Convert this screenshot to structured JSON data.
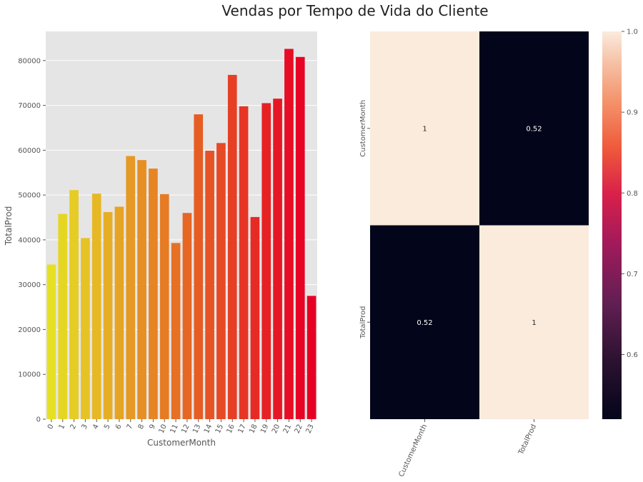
{
  "title": "Vendas por Tempo de Vida do Cliente",
  "chart_data": [
    {
      "type": "bar",
      "xlabel": "CustomerMonth",
      "ylabel": "TotalProd",
      "categories": [
        "0",
        "1",
        "2",
        "3",
        "4",
        "5",
        "6",
        "7",
        "8",
        "9",
        "10",
        "11",
        "12",
        "13",
        "14",
        "15",
        "16",
        "17",
        "18",
        "19",
        "20",
        "21",
        "22",
        "23"
      ],
      "values": [
        34500,
        45800,
        51100,
        40400,
        50300,
        46200,
        47400,
        58700,
        57800,
        55900,
        50200,
        39300,
        46000,
        68000,
        59900,
        61600,
        76800,
        69800,
        45100,
        70500,
        71500,
        82600,
        80800,
        27500
      ],
      "ylim": [
        0,
        86500
      ],
      "yticks": [
        0,
        10000,
        20000,
        30000,
        40000,
        50000,
        60000,
        70000,
        80000
      ],
      "grid": true,
      "colors": [
        "#e6e024",
        "#e6d624",
        "#e6cc24",
        "#e6c224",
        "#e6b824",
        "#e6ae24",
        "#e6a424",
        "#e69924",
        "#e68f24",
        "#e68524",
        "#e67b24",
        "#e67124",
        "#e66724",
        "#e65d24",
        "#e65324",
        "#e64924",
        "#e63f24",
        "#e63524",
        "#e62b24",
        "#e62124",
        "#e61724",
        "#e60d24",
        "#e60324",
        "#e60024"
      ]
    },
    {
      "type": "heatmap",
      "row_labels": [
        "CustomerMonth",
        "TotalProd"
      ],
      "col_labels": [
        "CustomerMonth",
        "TotalProd"
      ],
      "values": [
        [
          1,
          0.52
        ],
        [
          0.52,
          1
        ]
      ],
      "annotations": [
        [
          "1",
          "0.52"
        ],
        [
          "0.52",
          "1"
        ]
      ],
      "colorbar": {
        "min": 0.52,
        "max": 1.0,
        "ticks": [
          "0.6",
          "0.7",
          "0.8",
          "0.9",
          "1.0"
        ],
        "tick_values": [
          0.6,
          0.7,
          0.8,
          0.9,
          1.0
        ]
      },
      "colormap": "rocket"
    }
  ]
}
